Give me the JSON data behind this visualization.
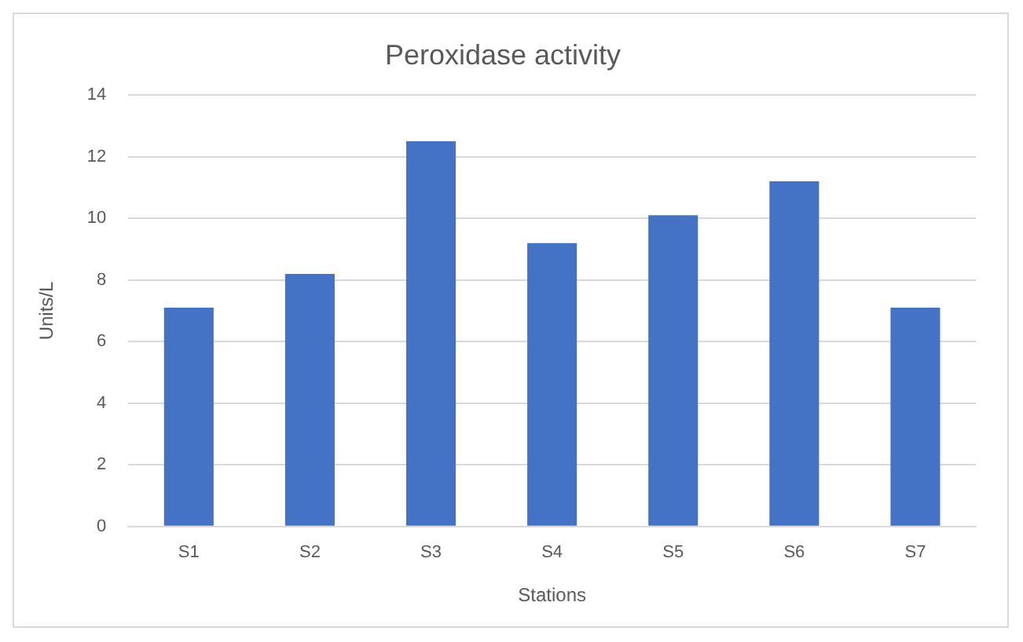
{
  "chart_data": {
    "type": "bar",
    "title": "Peroxidase activity",
    "xlabel": "Stations",
    "ylabel": "Units/L",
    "categories": [
      "S1",
      "S2",
      "S3",
      "S4",
      "S5",
      "S6",
      "S7"
    ],
    "values": [
      7.1,
      8.2,
      12.5,
      9.2,
      10.1,
      11.2,
      7.1
    ],
    "color": "#4472c4",
    "ylim": [
      0,
      14
    ],
    "yticks": [
      0,
      2,
      4,
      6,
      8,
      10,
      12,
      14
    ],
    "grid": "y"
  }
}
